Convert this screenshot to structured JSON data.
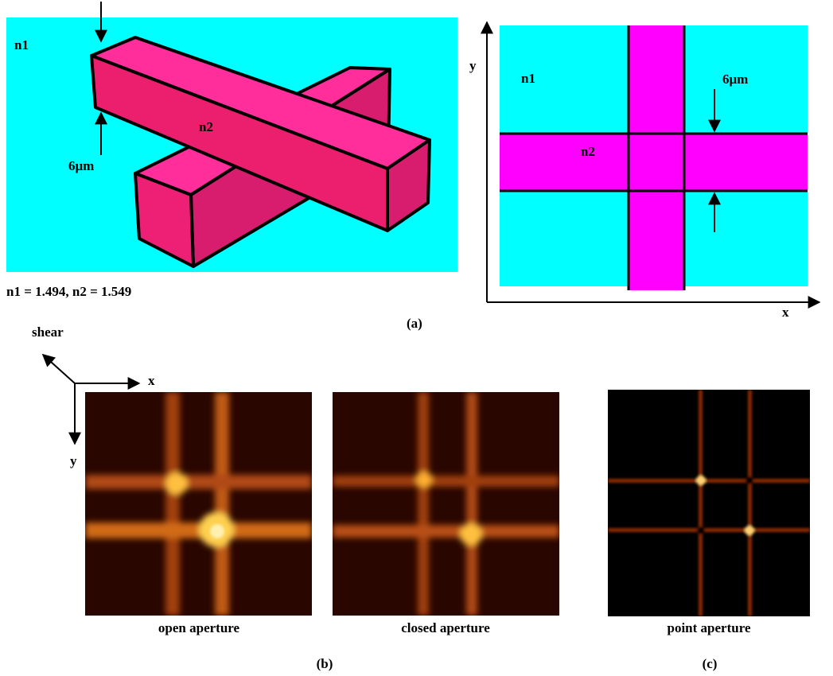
{
  "panel_a": {
    "left": {
      "n1": "n1",
      "n2": "n2",
      "thickness": "6μm",
      "indices": "n1 = 1.494,  n2 = 1.549"
    },
    "right": {
      "y_axis": "y",
      "x_axis": "x",
      "n1": "n1",
      "n2": "n2",
      "thickness": "6μm"
    },
    "label": "(a)"
  },
  "panel_b": {
    "axes": {
      "shear": "shear",
      "x": "x",
      "y": "y"
    },
    "images": [
      {
        "caption": "open aperture"
      },
      {
        "caption": "closed aperture"
      }
    ],
    "label": "(b)"
  },
  "panel_c": {
    "images": [
      {
        "caption": "point aperture"
      }
    ],
    "label": "(c)"
  }
}
